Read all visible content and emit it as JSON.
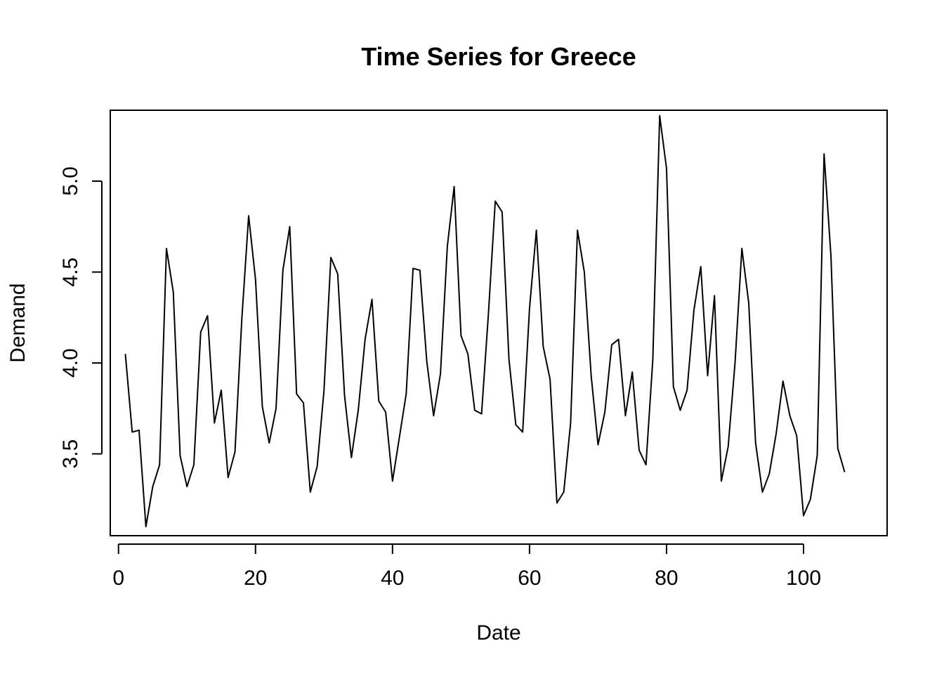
{
  "chart_data": {
    "type": "line",
    "title": "Time Series for Greece",
    "xlabel": "Date",
    "ylabel": "Demand",
    "xlim": [
      -1.2,
      112.2
    ],
    "ylim": [
      3.05,
      5.39
    ],
    "xticks": [
      0,
      20,
      40,
      60,
      80,
      100
    ],
    "xtick_labels": [
      "0",
      "20",
      "40",
      "60",
      "80",
      "100"
    ],
    "yticks": [
      3.5,
      4.0,
      4.5,
      5.0
    ],
    "ytick_labels": [
      "3.5",
      "4.0",
      "4.5",
      "5.0"
    ],
    "grid": false,
    "legend": "none",
    "line_color": "#000000",
    "x": [
      1,
      2,
      3,
      4,
      5,
      6,
      7,
      8,
      9,
      10,
      11,
      12,
      13,
      14,
      15,
      16,
      17,
      18,
      19,
      20,
      21,
      22,
      23,
      24,
      25,
      26,
      27,
      28,
      29,
      30,
      31,
      32,
      33,
      34,
      35,
      36,
      37,
      38,
      39,
      40,
      41,
      42,
      43,
      44,
      45,
      46,
      47,
      48,
      49,
      50,
      51,
      52,
      53,
      54,
      55,
      56,
      57,
      58,
      59,
      60,
      61,
      62,
      63,
      64,
      65,
      66,
      67,
      68,
      69,
      70,
      71,
      72,
      73,
      74,
      75,
      76,
      77,
      78,
      79,
      80,
      81,
      82,
      83,
      84,
      85,
      86,
      87,
      88,
      89,
      90,
      91,
      92,
      93,
      94,
      95,
      96,
      97,
      98,
      99,
      100,
      101,
      102,
      103,
      104,
      105,
      106
    ],
    "values": [
      4.05,
      3.62,
      3.63,
      3.1,
      3.32,
      3.44,
      4.63,
      4.39,
      3.49,
      3.32,
      3.44,
      4.17,
      4.26,
      3.67,
      3.85,
      3.37,
      3.51,
      4.24,
      4.81,
      4.46,
      3.76,
      3.56,
      3.75,
      4.51,
      4.75,
      3.83,
      3.78,
      3.29,
      3.43,
      3.85,
      4.58,
      4.49,
      3.82,
      3.48,
      3.74,
      4.13,
      4.35,
      3.79,
      3.73,
      3.35,
      3.59,
      3.83,
      4.52,
      4.51,
      4.01,
      3.71,
      3.94,
      4.64,
      4.97,
      4.15,
      4.05,
      3.74,
      3.72,
      4.27,
      4.89,
      4.83,
      4.02,
      3.66,
      3.62,
      4.3,
      4.73,
      4.09,
      3.91,
      3.23,
      3.29,
      3.67,
      4.73,
      4.5,
      3.93,
      3.55,
      3.73,
      4.1,
      4.13,
      3.71,
      3.95,
      3.52,
      3.44,
      4.02,
      5.36,
      5.07,
      3.87,
      3.74,
      3.85,
      4.29,
      4.53,
      3.93,
      4.37,
      3.35,
      3.54,
      4.0,
      4.63,
      4.33,
      3.56,
      3.29,
      3.39,
      3.61,
      3.9,
      3.71,
      3.6,
      3.16,
      3.25,
      3.49,
      5.15,
      4.59,
      3.53,
      3.4
    ]
  }
}
